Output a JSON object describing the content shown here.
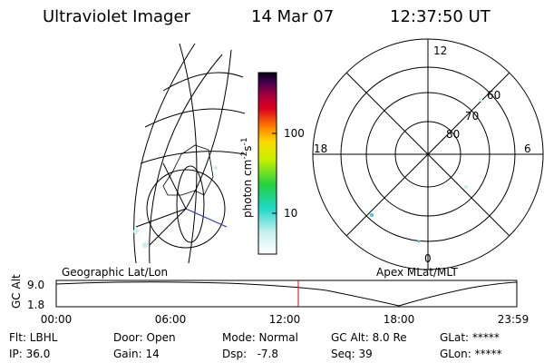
{
  "header": {
    "instrument": "Ultraviolet Imager",
    "date": "14 Mar 07",
    "time": "12:37:50 UT"
  },
  "colorbar": {
    "label": [
      "photon cm",
      "-2",
      "s",
      "-1"
    ],
    "ticks": [
      "100",
      "10"
    ]
  },
  "polar": {
    "mlt": {
      "top": "12",
      "left": "18",
      "right": "6",
      "bottom": "0"
    },
    "rings": [
      "80",
      "70",
      "60"
    ]
  },
  "panels": {
    "left": "Geographic Lat/Lon",
    "right": "Apex MLat/MLT"
  },
  "strip": {
    "ylabel": "GC Alt",
    "yticks": [
      "9.0",
      "1.8"
    ],
    "xticks": [
      "00:00",
      "06:00",
      "12:00",
      "18:00",
      "23:59"
    ]
  },
  "footer": {
    "rows": [
      [
        "Flt: LBHL",
        "Door: Open",
        "Mode: Normal",
        "GC Alt: 8.0 Re",
        "GLat: *****"
      ],
      [
        "IP: 36.0",
        "Gain: 14",
        "Dsp:   -7.8",
        "Seq: 39",
        "GLon: *****"
      ]
    ]
  }
}
